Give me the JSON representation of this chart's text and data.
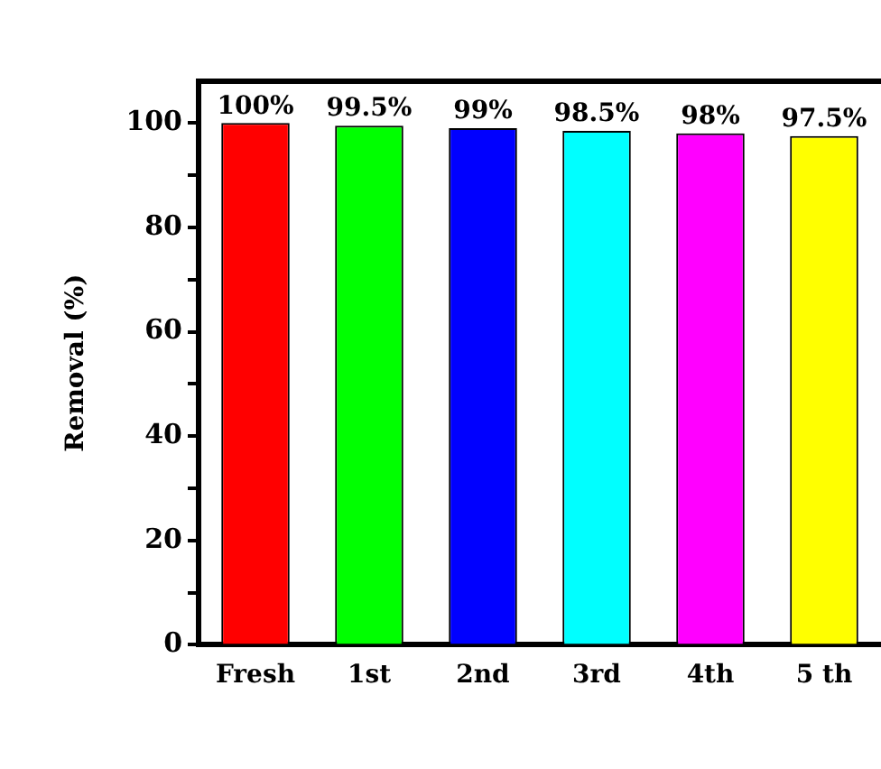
{
  "chart_data": {
    "type": "bar",
    "ylabel": "Removal (%)",
    "categories": [
      "Fresh",
      "1st",
      "2nd",
      "3rd",
      "4th",
      "5 th"
    ],
    "values": [
      100,
      99.5,
      99,
      98.5,
      98,
      97.5
    ],
    "colors": [
      "#ff0000",
      "#00ff00",
      "#0000ff",
      "#00ffff",
      "#ff00ff",
      "#ffff00"
    ],
    "value_labels": [
      "100%",
      "99.5%",
      "99%",
      "98.5%",
      "98%",
      "97.5%"
    ],
    "ylim": [
      0,
      108
    ],
    "yticks": [
      0,
      {
        "value": 10,
        "label": null
      },
      20,
      {
        "value": 30,
        "label": null
      },
      40,
      {
        "value": 50,
        "label": null
      },
      60,
      {
        "value": 70,
        "label": null
      },
      80,
      {
        "value": 90,
        "label": null
      },
      100
    ],
    "grid": false,
    "legend": false
  }
}
